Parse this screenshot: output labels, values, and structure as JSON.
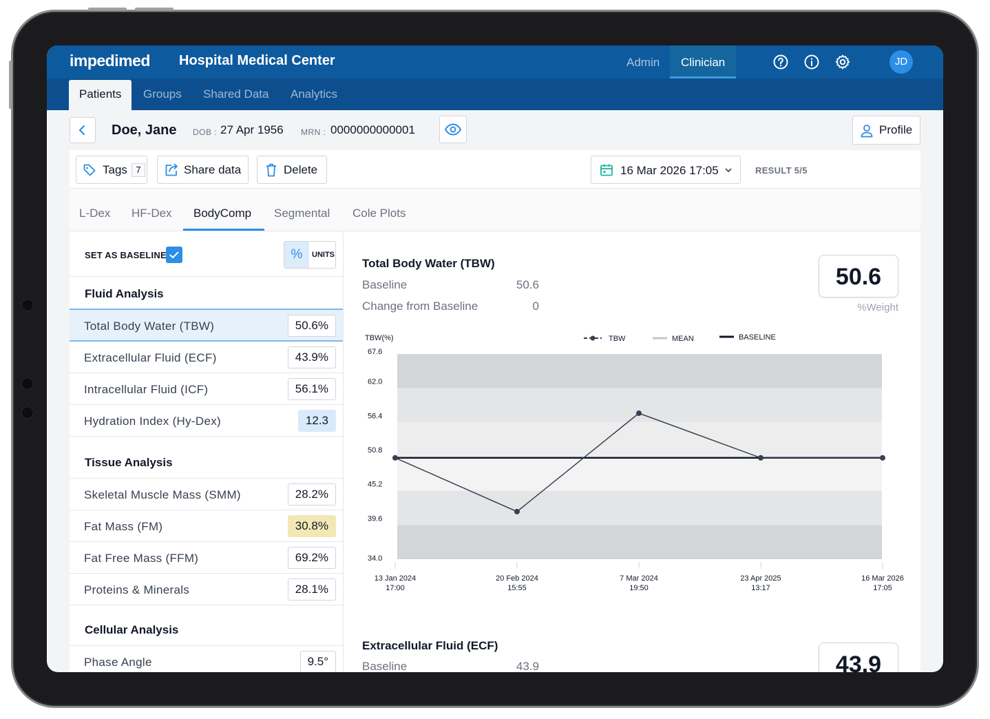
{
  "app": {
    "logo": "impedimed",
    "organization": "Hospital Medical Center",
    "roles": [
      "Admin",
      "Clinician"
    ],
    "active_role": "Clinician",
    "user_initials": "JD",
    "header_icons": [
      "help-icon",
      "info-icon",
      "settings-icon"
    ]
  },
  "nav": {
    "tabs": [
      "Patients",
      "Groups",
      "Shared Data",
      "Analytics"
    ],
    "active": "Patients"
  },
  "patient": {
    "name": "Doe, Jane",
    "dob_label": "DOB :",
    "dob": "27 Apr 1956",
    "mrn_label": "MRN :",
    "mrn": "0000000000001",
    "profile_label": "Profile"
  },
  "toolbar": {
    "tags_label": "Tags",
    "tags_count": "7",
    "share_label": "Share data",
    "delete_label": "Delete",
    "date": "16 Mar 2026 17:05",
    "result": "RESULT 5/5"
  },
  "subtabs": {
    "items": [
      "L-Dex",
      "HF-Dex",
      "BodyComp",
      "Segmental",
      "Cole Plots"
    ],
    "active": "BodyComp"
  },
  "left": {
    "baseline_label": "SET AS BASELINE",
    "baseline_checked": true,
    "unit_pct": "%",
    "unit_units": "UNITS",
    "sections": [
      {
        "title": "Fluid Analysis",
        "rows": [
          {
            "label": "Total Body Water (TBW)",
            "value": "50.6%"
          },
          {
            "label": "Extracellular Fluid (ECF)",
            "value": "43.9%"
          },
          {
            "label": "Intracellular Fluid (ICF)",
            "value": "56.1%"
          },
          {
            "label": "Hydration Index (Hy-Dex)",
            "value": "12.3"
          }
        ]
      },
      {
        "title": "Tissue Analysis",
        "rows": [
          {
            "label": "Skeletal Muscle Mass (SMM)",
            "value": "28.2%"
          },
          {
            "label": "Fat Mass (FM)",
            "value": "30.8%"
          },
          {
            "label": "Fat Free Mass (FFM)",
            "value": "69.2%"
          },
          {
            "label": "Proteins & Minerals",
            "value": "28.1%"
          }
        ]
      },
      {
        "title": "Cellular Analysis",
        "rows": [
          {
            "label": "Phase Angle",
            "value": "9.5°"
          }
        ]
      }
    ]
  },
  "tbw": {
    "title": "Total Body Water (TBW)",
    "baseline_label": "Baseline",
    "baseline_value": "50.6",
    "change_label": "Change from Baseline",
    "change_value": "0",
    "big_value": "50.6",
    "big_unit": "%Weight"
  },
  "ecf": {
    "title": "Extracellular Fluid (ECF)",
    "baseline_label": "Baseline",
    "baseline_value": "43.9",
    "big_value": "43.9"
  },
  "chart_data": {
    "type": "line",
    "ylabel": "TBW(%)",
    "legend": [
      "TBW",
      "MEAN",
      "BASELINE"
    ],
    "legend_position": "top",
    "y_ticks": [
      "67.6",
      "62.0",
      "56.4",
      "50.8",
      "45.2",
      "39.6",
      "34.0"
    ],
    "ylim": [
      34.0,
      67.6
    ],
    "x_labels": [
      {
        "date": "13 Jan 2024",
        "time": "17:00"
      },
      {
        "date": "20 Feb 2024",
        "time": "15:55"
      },
      {
        "date": "7 Mar 2024",
        "time": "19:50"
      },
      {
        "date": "23 Apr 2025",
        "time": "13:17"
      },
      {
        "date": "16 Mar 2026",
        "time": "17:05"
      }
    ],
    "series": [
      {
        "name": "TBW",
        "values": [
          50.6,
          41.8,
          57.9,
          50.6,
          50.6
        ]
      },
      {
        "name": "BASELINE",
        "values": [
          50.6,
          50.6,
          50.6,
          50.6,
          50.6
        ]
      }
    ],
    "bands": [
      67.6,
      62.0,
      56.4,
      50.8,
      45.2,
      39.6,
      34.0
    ]
  }
}
